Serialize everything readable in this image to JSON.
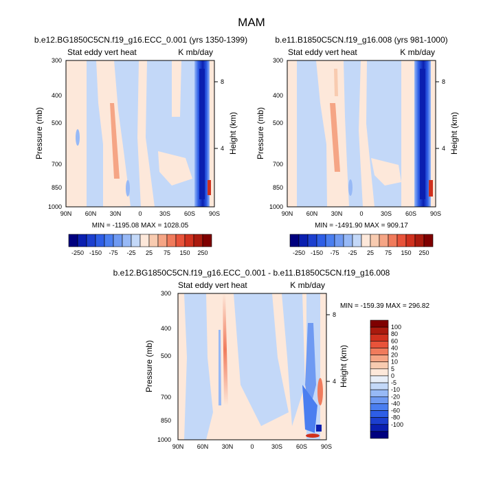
{
  "figure": {
    "title": "MAM"
  },
  "chart_data": [
    {
      "type": "heatmap",
      "title": "b.e12.BG1850C5CN.f19_g16.ECC_0.001 (yrs 1350-1399)",
      "left_subtitle": "Stat eddy vert heat",
      "right_subtitle": "K mb/day",
      "xlabel": "",
      "ylabel": "Pressure (mb)",
      "y2label": "Height (km)",
      "x_ticks": [
        "90N",
        "60N",
        "30N",
        "0",
        "30S",
        "60S",
        "90S"
      ],
      "y_ticks": [
        "300",
        "400",
        "500",
        "700",
        "850",
        "1000"
      ],
      "y2_ticks": [
        "8",
        "4"
      ],
      "xlim": [
        90,
        -90
      ],
      "ylim": [
        1000,
        300
      ],
      "y_scale": "log",
      "stats": "MIN = -1195.08  MAX = 1028.05",
      "min": -1195.08,
      "max": 1028.05
    },
    {
      "type": "heatmap",
      "title": "b.e11.B1850C5CN.f19_g16.008 (yrs 981-1000)",
      "left_subtitle": "Stat eddy vert heat",
      "right_subtitle": "K mb/day",
      "xlabel": "",
      "ylabel": "Pressure (mb)",
      "y2label": "Height (km)",
      "x_ticks": [
        "90N",
        "60N",
        "30N",
        "0",
        "30S",
        "60S",
        "90S"
      ],
      "y_ticks": [
        "300",
        "400",
        "500",
        "700",
        "850",
        "1000"
      ],
      "y2_ticks": [
        "8",
        "4"
      ],
      "xlim": [
        90,
        -90
      ],
      "ylim": [
        1000,
        300
      ],
      "y_scale": "log",
      "stats": "MIN = -1491.90  MAX = 909.17",
      "min": -1491.9,
      "max": 909.17
    },
    {
      "type": "heatmap",
      "title": "b.e12.BG1850C5CN.f19_g16.ECC_0.001 - b.e11.B1850C5CN.f19_g16.008",
      "left_subtitle": "Stat eddy vert heat",
      "right_subtitle": "K mb/day",
      "xlabel": "",
      "ylabel": "Pressure (mb)",
      "y2label": "Height (km)",
      "x_ticks": [
        "90N",
        "60N",
        "30N",
        "0",
        "30S",
        "60S",
        "90S"
      ],
      "y_ticks": [
        "300",
        "400",
        "500",
        "700",
        "850",
        "1000"
      ],
      "y2_ticks": [
        "8",
        "4"
      ],
      "xlim": [
        90,
        -90
      ],
      "ylim": [
        1000,
        300
      ],
      "y_scale": "log",
      "stats": "MIN = -159.39  MAX = 296.82",
      "min": -159.39,
      "max": 296.82
    }
  ],
  "colorbars": {
    "top": {
      "labels": [
        "-250",
        "-150",
        "-75",
        "-25",
        "25",
        "75",
        "150",
        "250"
      ],
      "colors": [
        "#00007f",
        "#0a1fb0",
        "#1c3fcf",
        "#2e5ee6",
        "#4a7ef0",
        "#6f9af2",
        "#97b9f6",
        "#c3d8f8",
        "#fde8da",
        "#f8cbb0",
        "#f5a585",
        "#f07b5c",
        "#e8533a",
        "#d0311e",
        "#aa1a0e",
        "#7f0000"
      ]
    },
    "diff": {
      "labels": [
        "100",
        "80",
        "60",
        "40",
        "20",
        "10",
        "5",
        "0",
        "-5",
        "-10",
        "-20",
        "-40",
        "-60",
        "-80",
        "-100"
      ],
      "colors": [
        "#7f0000",
        "#aa1a0e",
        "#d0311e",
        "#e8533a",
        "#f07b5c",
        "#f5a585",
        "#f8cbb0",
        "#fde8da",
        "#e8eef8",
        "#c3d8f8",
        "#97b9f6",
        "#6f9af2",
        "#4a7ef0",
        "#2e5ee6",
        "#1c3fcf",
        "#0a1fb0",
        "#00007f"
      ]
    }
  }
}
